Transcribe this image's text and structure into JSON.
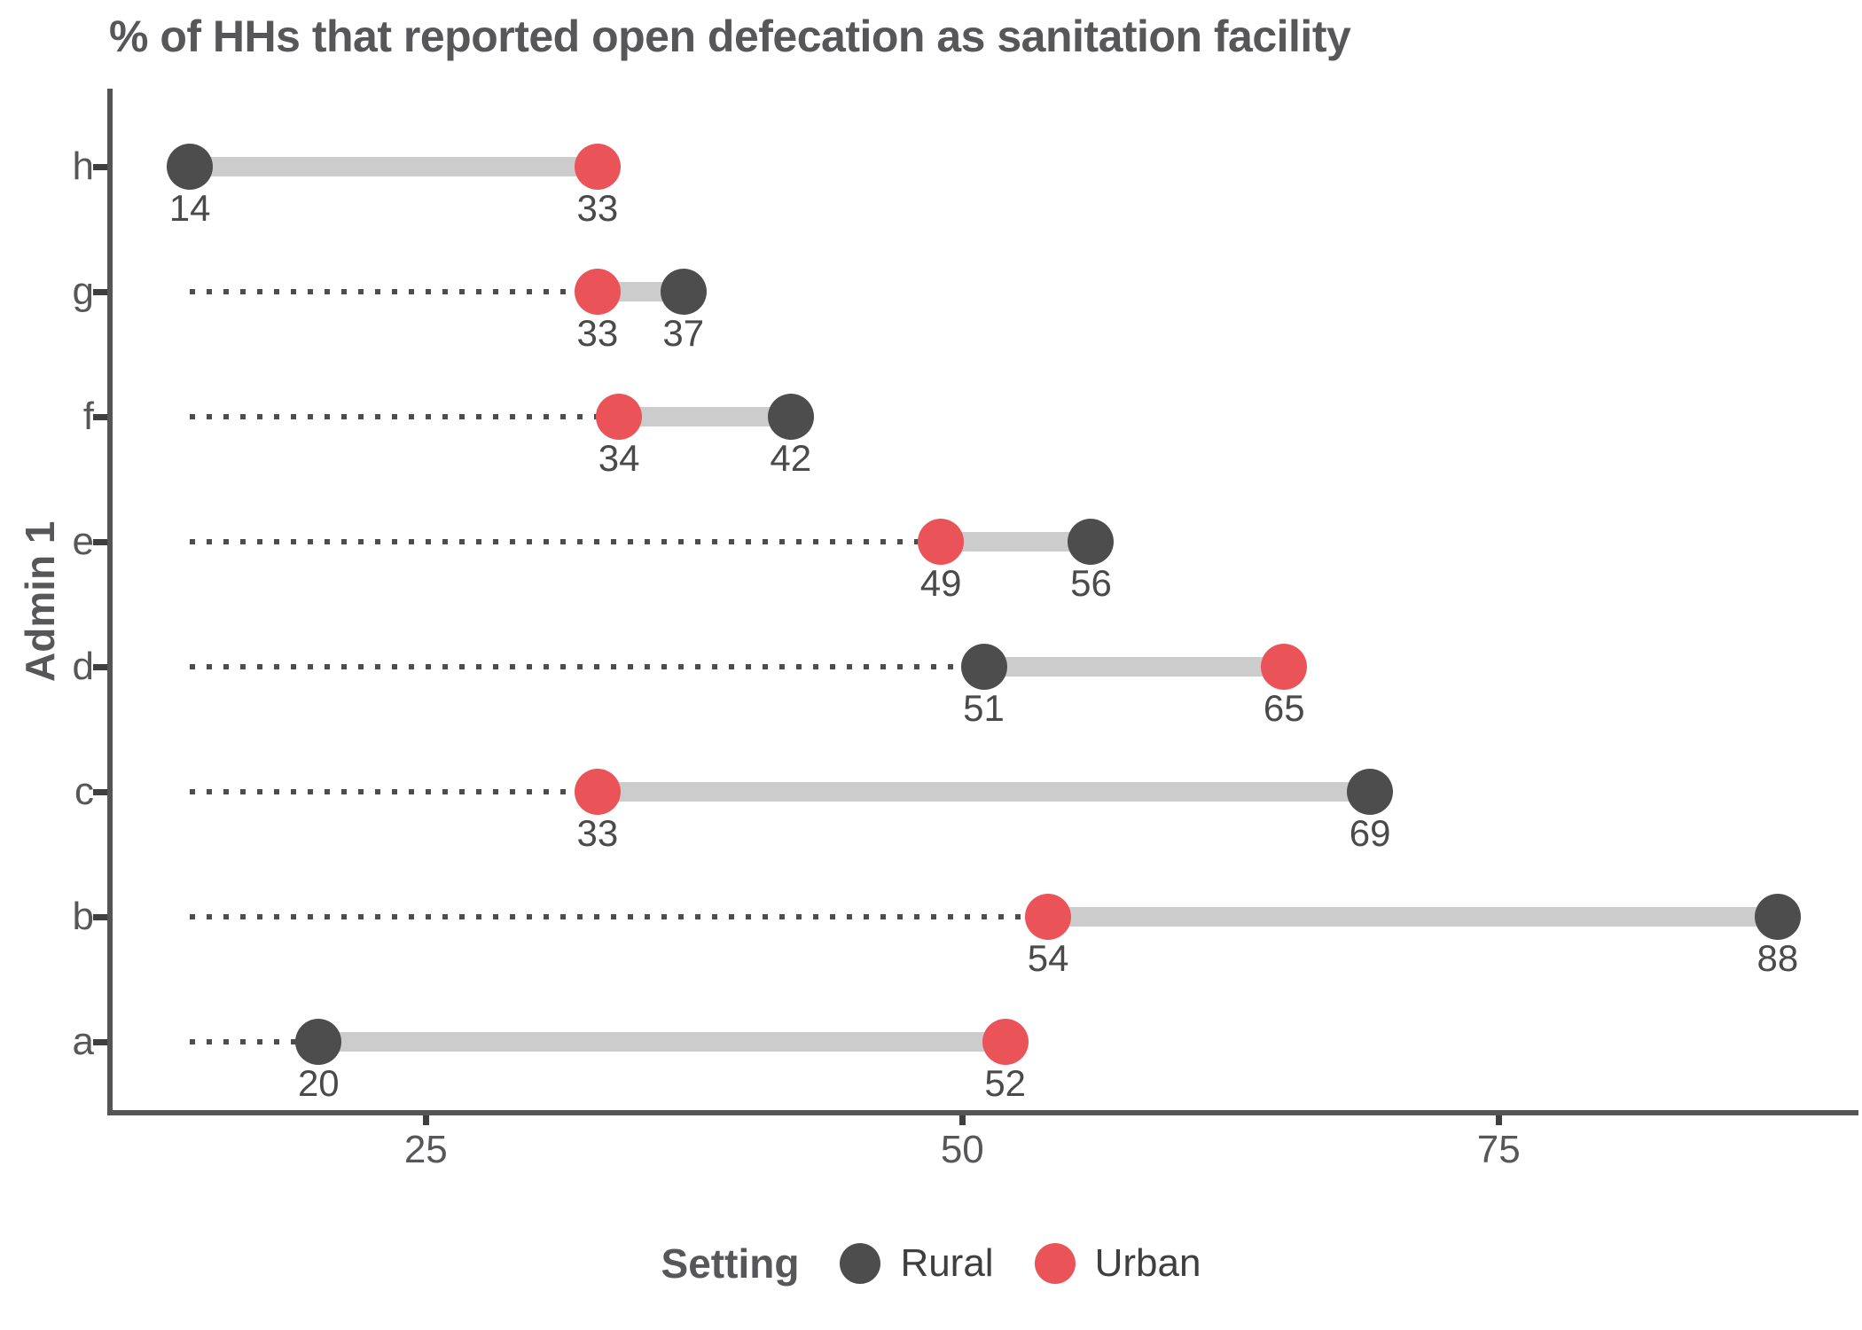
{
  "chart_data": {
    "type": "scatter",
    "subtype": "dumbbell-range-plot",
    "title": "% of HHs that reported open defecation as sanitation facility",
    "xlabel": "",
    "ylabel": "Admin 1",
    "xlim": [
      10.4,
      91.6
    ],
    "x_ticks": [
      25,
      50,
      75
    ],
    "grid": "off",
    "legend_position": "bottom",
    "categories_top_to_bottom": [
      "h",
      "g",
      "f",
      "e",
      "d",
      "c",
      "b",
      "a"
    ],
    "series": [
      {
        "name": "Rural",
        "values": [
          14,
          37,
          42,
          56,
          51,
          69,
          88,
          20
        ]
      },
      {
        "name": "Urban",
        "values": [
          33,
          33,
          34,
          49,
          65,
          33,
          54,
          52
        ]
      }
    ],
    "rows": [
      {
        "category": "h",
        "rural": 14,
        "urban": 33
      },
      {
        "category": "g",
        "rural": 37,
        "urban": 33
      },
      {
        "category": "f",
        "rural": 42,
        "urban": 34
      },
      {
        "category": "e",
        "rural": 56,
        "urban": 49
      },
      {
        "category": "d",
        "rural": 51,
        "urban": 65
      },
      {
        "category": "c",
        "rural": 69,
        "urban": 33
      },
      {
        "category": "b",
        "rural": 88,
        "urban": 54
      },
      {
        "category": "a",
        "rural": 20,
        "urban": 52
      }
    ],
    "leader_line_start_value": 14,
    "legend": {
      "title": "Setting",
      "items": [
        {
          "label": "Rural",
          "color": "#4D4D4D"
        },
        {
          "label": "Urban",
          "color": "#EA5458"
        }
      ]
    },
    "colors": {
      "rural": "#4D4D4D",
      "urban": "#EA5458",
      "bar": "#CCCCCC",
      "leader": "#4D4D4D",
      "axis": "#555555",
      "text": "#57575A",
      "value_text": "#4A4A4A"
    }
  }
}
